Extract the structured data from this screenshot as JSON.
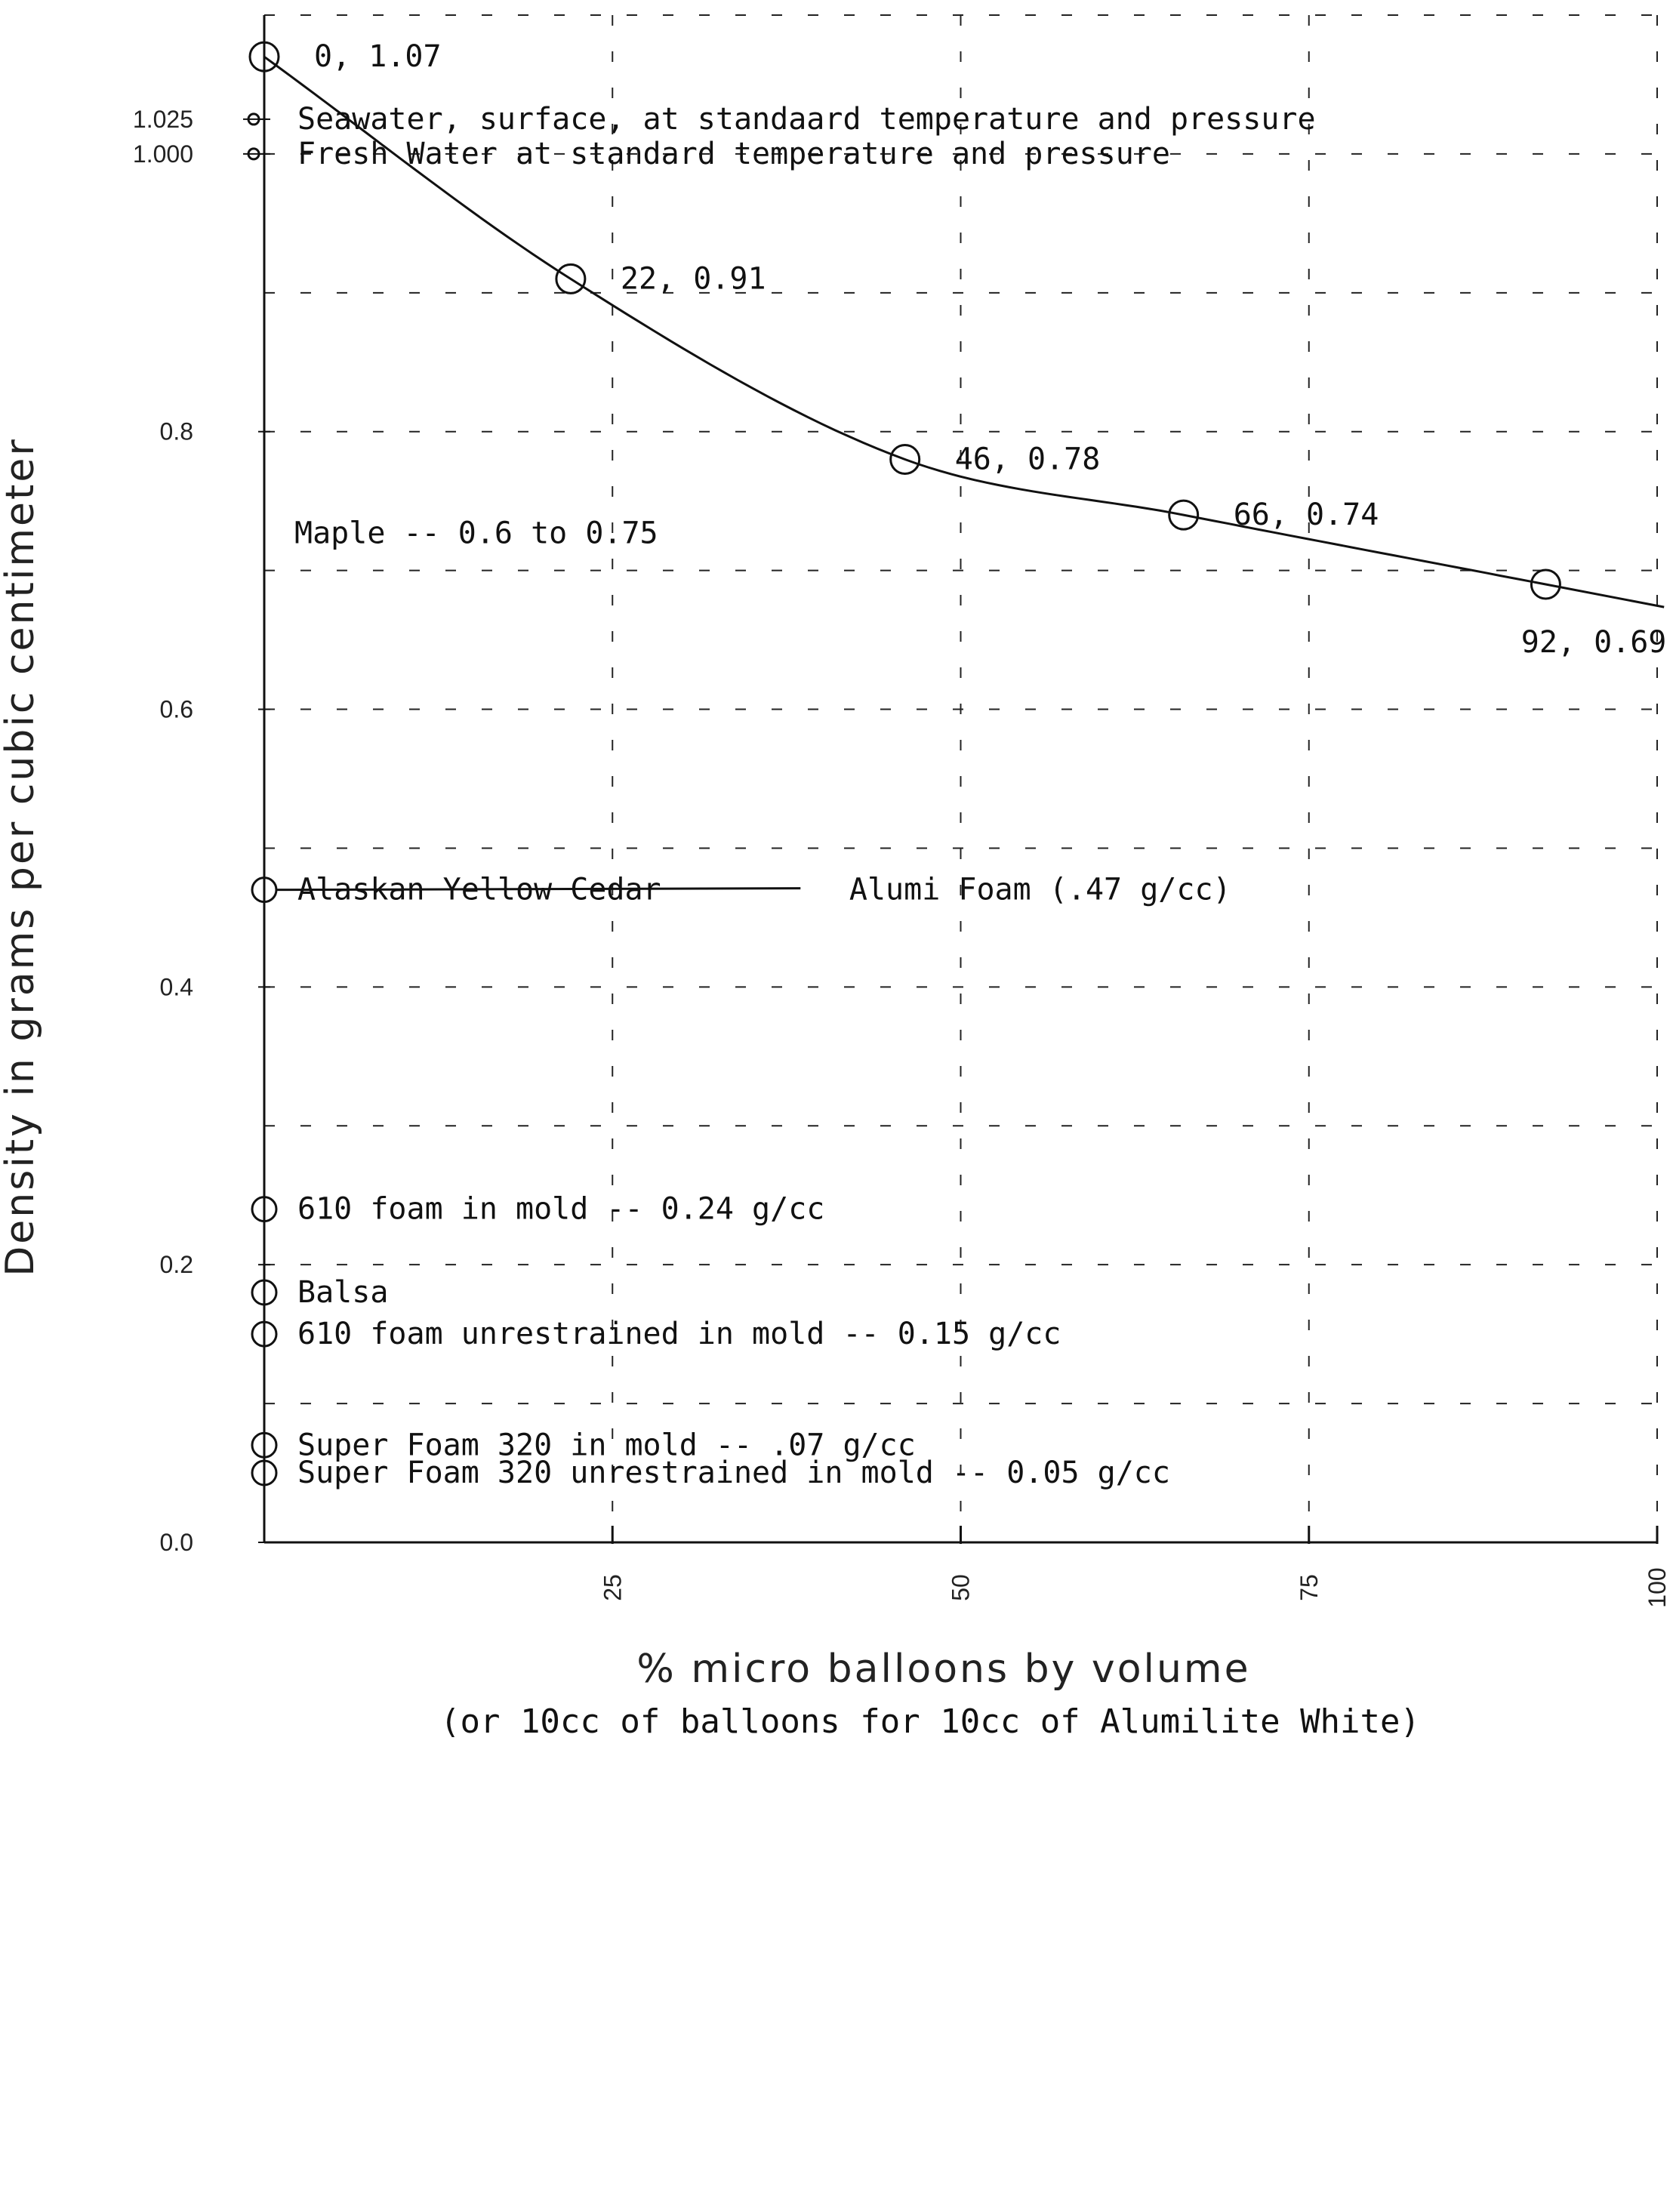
{
  "colors": {
    "ink": "#111111",
    "grid": "#222222",
    "paper": "#ffffff"
  },
  "chart_data": {
    "type": "line",
    "title": "",
    "xlabel": "% micro balloons by volume",
    "xlabel_sub": "(or 10cc of balloons for 10cc of Alumilite White)",
    "ylabel": "Density in grams per cubic centimeter",
    "xlim": [
      0,
      100
    ],
    "ylim": [
      0,
      1.1
    ],
    "grid": true,
    "x_ticks": [
      25,
      50,
      75,
      100
    ],
    "x_tick_labels": [
      "25",
      "50",
      "75",
      "100"
    ],
    "y_ticks": [
      0.0,
      0.2,
      0.4,
      0.6,
      0.8,
      1.0,
      1.025
    ],
    "y_tick_labels": [
      "0.0",
      "0.2",
      "0.4",
      "0.6",
      "0.8",
      "1.000",
      "1.025"
    ],
    "series": [
      {
        "x": [
          0,
          22,
          46,
          66,
          92
        ],
        "y": [
          1.07,
          0.91,
          0.78,
          0.74,
          0.69
        ],
        "point_labels": [
          "0, 1.07",
          "22, 0.91",
          "46, 0.78",
          "66, 0.74",
          "92, 0.69"
        ]
      }
    ],
    "references": [
      {
        "y": 1.025,
        "label": "Seawater, surface, at standaard temperature and pressure",
        "marker": "small"
      },
      {
        "y": 1.0,
        "label": "Fresh Water at standard temperature and pressure",
        "marker": "small"
      },
      {
        "y": 0.75,
        "label": "Maple -- 0.6 to 0.75",
        "marker": "none"
      },
      {
        "y": 0.47,
        "label": "Alaskan Yellow Cedar",
        "marker": "circle"
      },
      {
        "y": 0.47,
        "label": "Alumi Foam (.47 g/cc)",
        "marker": "none"
      },
      {
        "y": 0.24,
        "label": "610 foam in mold -- 0.24 g/cc",
        "marker": "circle"
      },
      {
        "y": 0.18,
        "label": "Balsa",
        "marker": "circle"
      },
      {
        "y": 0.15,
        "label": "610 foam unrestrained in mold -- 0.15 g/cc",
        "marker": "circle"
      },
      {
        "y": 0.07,
        "label": "Super Foam 320 in mold -- .07 g/cc",
        "marker": "circle"
      },
      {
        "y": 0.05,
        "label": "Super Foam 320 unrestrained in mold -- 0.05 g/cc",
        "marker": "circle"
      }
    ]
  }
}
